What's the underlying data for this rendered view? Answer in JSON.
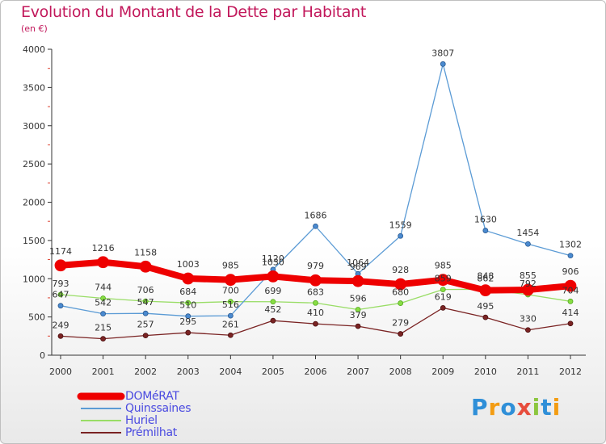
{
  "header": {
    "title": "Evolution du Montant de la Dette par Habitant",
    "subtitle": "(en €)"
  },
  "logo": {
    "text": "Proxiti",
    "colors": [
      "#2f8fd8",
      "#f39c12",
      "#2f8fd8",
      "#e74c3c",
      "#8cc63f",
      "#2f8fd8",
      "#f39c12"
    ]
  },
  "chart_data": {
    "type": "line",
    "x": [
      "2000",
      "2001",
      "2002",
      "2003",
      "2004",
      "2005",
      "2006",
      "2007",
      "2008",
      "2009",
      "2010",
      "2011",
      "2012"
    ],
    "ylim": [
      0,
      4000
    ],
    "yticks": [
      "0",
      "500",
      "1000",
      "1500",
      "2000",
      "2500",
      "3000",
      "3500",
      "4000"
    ],
    "grid": false,
    "legend_position": "bottom-left",
    "series": [
      {
        "name": "DOMéRAT",
        "color": "#ee0000",
        "values": [
          1174,
          1216,
          1158,
          1003,
          985,
          1030,
          979,
          969,
          928,
          985,
          848,
          855,
          906
        ],
        "labels": [
          "1174",
          "1216",
          "1158",
          "1003",
          "985",
          "1030",
          "979",
          "969",
          "928",
          "985",
          "848",
          "855",
          "906"
        ]
      },
      {
        "name": "Quinssaines",
        "color": "#5b9bd5",
        "values": [
          647,
          542,
          547,
          510,
          516,
          1120,
          1686,
          1064,
          1559,
          3807,
          1630,
          1454,
          1302
        ],
        "labels": [
          "647",
          "542",
          "547",
          "510",
          "516",
          "1120",
          "1686",
          "1064",
          "1559",
          "3807",
          "1630",
          "1454",
          "1302"
        ]
      },
      {
        "name": "Huriel",
        "color": "#99dd66",
        "values": [
          793,
          744,
          706,
          684,
          700,
          699,
          683,
          596,
          680,
          859,
          862,
          792,
          704
        ],
        "labels": [
          "793",
          "744",
          "706",
          "684",
          "700",
          "699",
          "683",
          "596",
          "680",
          "859",
          "862",
          "792",
          "704"
        ]
      },
      {
        "name": "Prémilhat",
        "color": "#7a2323",
        "values": [
          249,
          215,
          257,
          295,
          261,
          452,
          410,
          379,
          279,
          619,
          495,
          330,
          414
        ],
        "labels": [
          "249",
          "215",
          "257",
          "295",
          "261",
          "452",
          "410",
          "379",
          "279",
          "619",
          "495",
          "330",
          "414"
        ]
      }
    ]
  }
}
